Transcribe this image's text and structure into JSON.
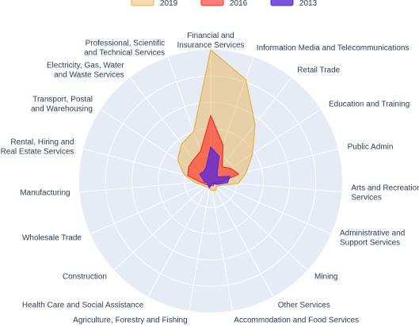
{
  "chart_data": {
    "type": "radar",
    "title": "",
    "categories": [
      "Financial and\nInsurance Services",
      "Information Media and Telecommunications",
      "Retail Trade",
      "Education and Training",
      "Public Admin",
      "Arts and Recreation\nServices",
      "Administrative and\nSupport Services",
      "Mining",
      "Other Services",
      "Accommodation and Food Services",
      "Agriculture, Forestry and Fishing",
      "Health Care and Social Assistance",
      "Construction",
      "Wholesale Trade",
      "Manufacturing",
      "Rental, Hiring and\nReal Estate Services",
      "Transport, Postal\nand Warehousing",
      "Electricity, Gas, Water\nand Waste Services",
      "Professional, Scientific\nand Technical Services"
    ],
    "radial_range": [
      0,
      100
    ],
    "grid": true,
    "legend_position": "top-center",
    "series": [
      {
        "name": "2019",
        "color": "#e8b04a",
        "fill_opacity": 0.45,
        "values": [
          100,
          82,
          55,
          38,
          28,
          21,
          8,
          6,
          8,
          7,
          6,
          5,
          6,
          7,
          12,
          21,
          30,
          36,
          40
        ]
      },
      {
        "name": "2016",
        "color": "#ff2a1e",
        "fill_opacity": 0.6,
        "values": [
          50,
          29,
          14,
          18,
          22,
          8,
          4,
          3,
          4,
          3,
          4,
          3,
          4,
          5,
          8,
          18,
          20,
          21,
          24
        ]
      },
      {
        "name": "2013",
        "color": "#5a2bd6",
        "fill_opacity": 0.8,
        "values": [
          26,
          20,
          8,
          6,
          15,
          13,
          6,
          3,
          2,
          3,
          5,
          4,
          3,
          3,
          5,
          6,
          10,
          9,
          11
        ]
      }
    ],
    "legend_order": [
      "2019",
      "2016",
      "2013"
    ]
  }
}
